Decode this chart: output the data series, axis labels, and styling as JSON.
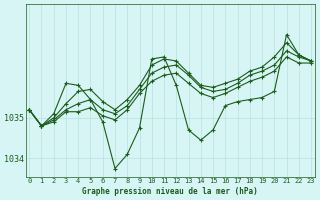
{
  "xlabel": "Graphe pression niveau de la mer (hPa)",
  "bg_color": "#d8f5f5",
  "grid_color": "#b8e0e0",
  "line_color": "#1a5c1a",
  "x_ticks": [
    0,
    1,
    2,
    3,
    4,
    5,
    6,
    7,
    8,
    9,
    10,
    11,
    12,
    13,
    14,
    15,
    16,
    17,
    18,
    19,
    20,
    21,
    22,
    23
  ],
  "yticks": [
    1034,
    1035
  ],
  "ylim": [
    1033.55,
    1037.8
  ],
  "xlim": [
    -0.3,
    23.3
  ],
  "series": [
    [
      1035.2,
      1034.8,
      1034.9,
      1035.15,
      1035.15,
      1035.25,
      1035.05,
      1034.95,
      1035.2,
      1035.6,
      1035.9,
      1036.05,
      1036.1,
      1035.85,
      1035.6,
      1035.5,
      1035.6,
      1035.75,
      1035.9,
      1036.0,
      1036.15,
      1036.5,
      1036.35,
      1036.35
    ],
    [
      1035.2,
      1034.8,
      1034.95,
      1035.2,
      1035.35,
      1035.45,
      1035.2,
      1035.1,
      1035.3,
      1035.7,
      1036.1,
      1036.25,
      1036.3,
      1036.05,
      1035.75,
      1035.65,
      1035.7,
      1035.85,
      1036.05,
      1036.15,
      1036.3,
      1036.65,
      1036.5,
      1036.4
    ],
    [
      1035.2,
      1034.8,
      1035.0,
      1035.35,
      1035.65,
      1035.7,
      1035.4,
      1035.2,
      1035.45,
      1035.8,
      1036.3,
      1036.45,
      1036.4,
      1036.1,
      1035.8,
      1035.75,
      1035.85,
      1035.95,
      1036.15,
      1036.25,
      1036.5,
      1036.85,
      1036.55,
      1036.4
    ],
    [
      1035.2,
      1034.8,
      1035.1,
      1035.85,
      1035.8,
      1035.45,
      1034.9,
      1033.75,
      1034.1,
      1034.75,
      1036.45,
      1036.5,
      1035.8,
      1034.7,
      1034.45,
      1034.7,
      1035.3,
      1035.4,
      1035.45,
      1035.5,
      1035.65,
      1037.05,
      1036.55,
      1036.4
    ]
  ]
}
